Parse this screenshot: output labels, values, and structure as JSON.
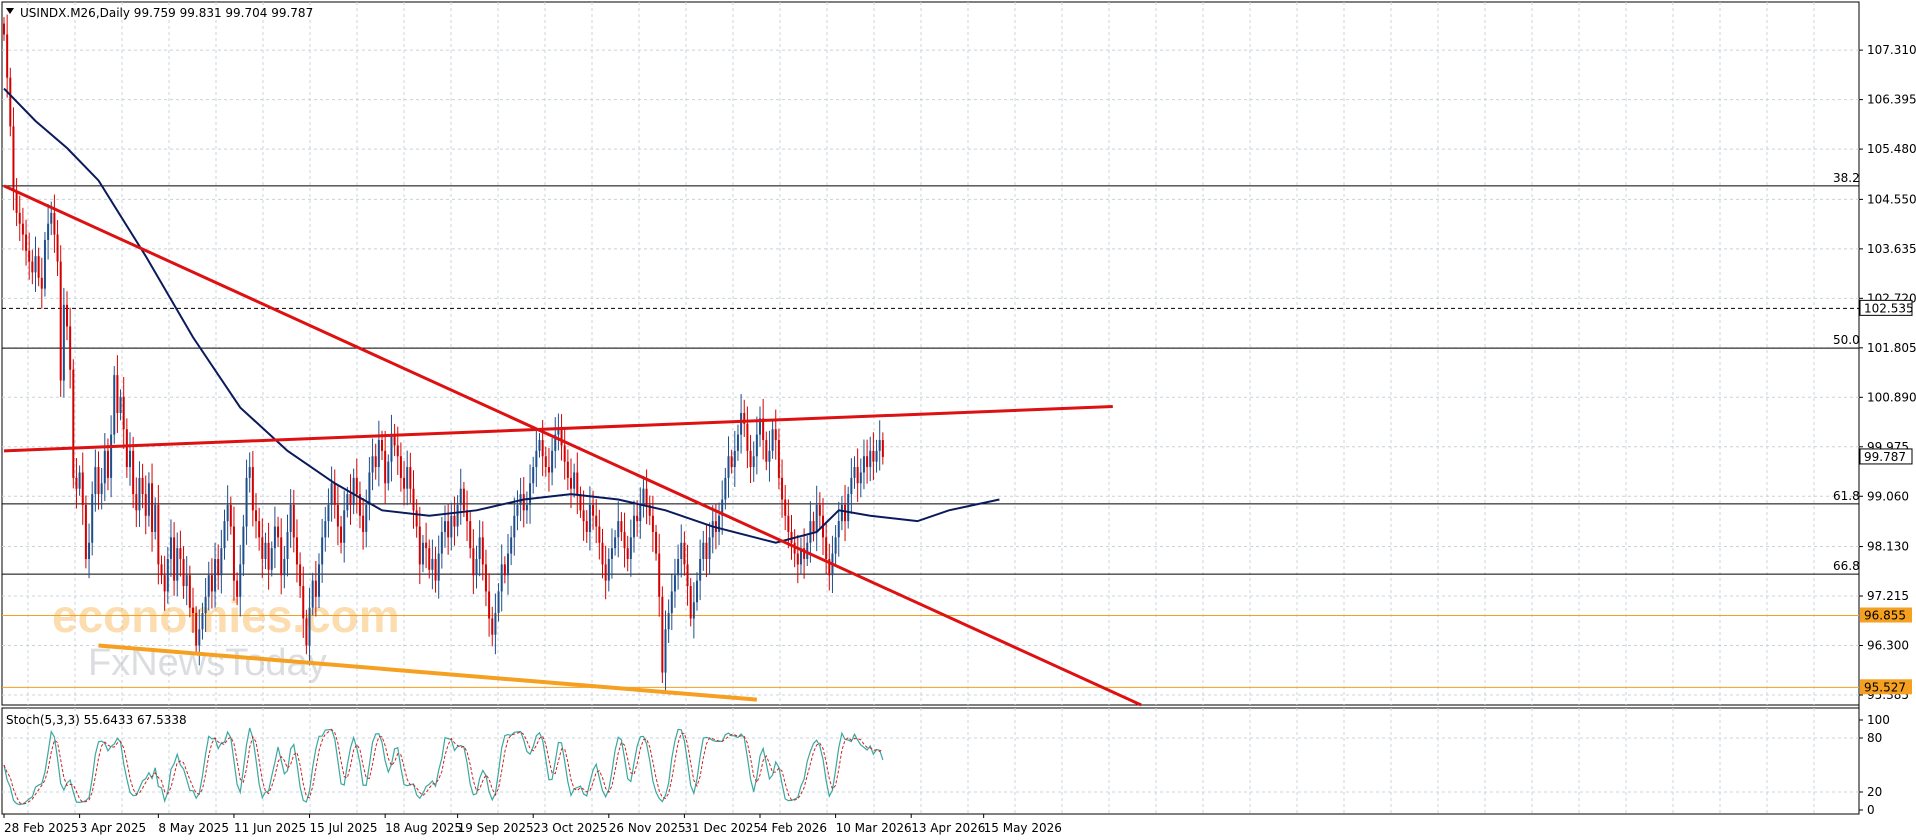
{
  "header": {
    "title": "USINDX.M26,Daily  99.759 99.831 99.704 99.787",
    "stoch_title": "Stoch(5,3,3) 55.6433 67.5338"
  },
  "watermark": {
    "line1": "economies.com",
    "line2": "FxNewsToday"
  },
  "colors": {
    "bull": "#1f4e8c",
    "bear": "#d40000",
    "ma": "#0a1a5c",
    "trend_red": "#dd1111",
    "trend_orange": "#f5a020",
    "stoch_main": "#3aa8a0",
    "stoch_signal": "#cc2222",
    "grid": "#c8d4dc"
  },
  "chart_data": {
    "type": "candlestick",
    "symbol": "USINDX.M26",
    "timeframe": "Daily",
    "ohlc_current": {
      "open": 99.759,
      "high": 99.831,
      "low": 99.704,
      "close": 99.787
    },
    "ylim": [
      95.2,
      108.2
    ],
    "y_ticks": [
      "107.310",
      "106.395",
      "105.480",
      "104.550",
      "103.635",
      "102.720",
      "101.805",
      "100.890",
      "99.975",
      "99.060",
      "98.130",
      "97.215",
      "96.300",
      "95.385"
    ],
    "x_ticks": [
      "28 Feb 2025",
      "3 Apr 2025",
      "8 May 2025",
      "11 Jun 2025",
      "15 Jul 2025",
      "18 Aug 2025",
      "19 Sep 2025",
      "23 Oct 2025",
      "26 Nov 2025",
      "31 Dec 2025",
      "4 Feb 2026",
      "10 Mar 2026",
      "13 Apr 2026",
      "15 May 2026"
    ],
    "x_tick_bar_index": [
      0,
      24,
      49,
      73,
      97,
      121,
      144,
      168,
      192,
      216,
      240,
      264,
      288,
      311
    ],
    "closes": [
      107.6,
      106.8,
      105.9,
      104.7,
      104.3,
      104.1,
      103.9,
      103.6,
      103.4,
      103.2,
      103.5,
      103.1,
      102.9,
      103.8,
      104.1,
      104.3,
      103.9,
      103.4,
      101.2,
      102.6,
      102.2,
      101.4,
      99.4,
      99.2,
      99.5,
      98.9,
      97.9,
      98.2,
      99.1,
      99.6,
      99.1,
      99.3,
      99.9,
      99.4,
      100.2,
      101.3,
      100.6,
      100.9,
      100.3,
      99.6,
      99.9,
      99.1,
      98.8,
      99.4,
      99.1,
      98.7,
      99.3,
      98.4,
      98.9,
      97.8,
      97.6,
      97.3,
      97.9,
      98.3,
      97.5,
      98.1,
      97.9,
      97.4,
      97.6,
      97.0,
      96.9,
      96.3,
      96.6,
      96.9,
      97.2,
      97.6,
      97.3,
      97.9,
      97.6,
      98.1,
      98.6,
      98.9,
      98.5,
      97.5,
      97.2,
      97.8,
      98.5,
      99.4,
      99.6,
      98.8,
      98.6,
      98.3,
      97.9,
      98.2,
      97.7,
      98.1,
      98.5,
      98.3,
      97.6,
      97.9,
      98.4,
      98.9,
      98.3,
      97.8,
      97.4,
      96.8,
      96.3,
      97.0,
      97.5,
      97.2,
      97.8,
      98.3,
      98.6,
      98.9,
      99.3,
      98.9,
      98.5,
      98.2,
      98.8,
      99.1,
      98.9,
      99.4,
      99.1,
      98.7,
      98.4,
      98.9,
      99.5,
      99.8,
      99.6,
      100.1,
      99.9,
      99.3,
      99.7,
      100.2,
      100.0,
      99.8,
      99.4,
      99.2,
      99.6,
      99.2,
      98.8,
      98.5,
      97.8,
      98.2,
      98.1,
      97.7,
      97.9,
      97.5,
      98.0,
      98.4,
      98.6,
      98.3,
      98.7,
      98.5,
      98.9,
      99.2,
      98.8,
      98.6,
      98.1,
      97.6,
      97.9,
      98.3,
      97.8,
      97.3,
      96.8,
      96.5,
      96.9,
      97.3,
      97.8,
      97.6,
      98.0,
      98.3,
      98.7,
      98.9,
      99.1,
      98.8,
      98.9,
      99.3,
      99.6,
      99.9,
      100.1,
      99.8,
      99.6,
      99.5,
      99.9,
      100.2,
      100.3,
      100.0,
      99.7,
      99.4,
      99.2,
      99.5,
      99.1,
      98.8,
      98.6,
      98.4,
      98.9,
      98.7,
      98.5,
      98.2,
      97.8,
      97.5,
      97.9,
      98.1,
      98.3,
      98.6,
      98.4,
      98.1,
      97.9,
      98.3,
      98.7,
      98.6,
      98.9,
      99.2,
      98.9,
      98.7,
      98.4,
      98.0,
      97.2,
      95.8,
      96.6,
      96.9,
      97.3,
      97.6,
      97.9,
      98.2,
      97.8,
      97.4,
      96.8,
      97.1,
      97.5,
      97.9,
      98.2,
      97.9,
      98.3,
      98.6,
      98.4,
      98.7,
      99.0,
      99.4,
      99.8,
      99.6,
      99.9,
      100.2,
      100.6,
      100.4,
      99.9,
      99.6,
      99.8,
      100.2,
      100.5,
      100.1,
      99.7,
      99.9,
      100.3,
      100.1,
      99.4,
      99.0,
      98.7,
      98.4,
      98.2,
      98.0,
      97.8,
      98.1,
      97.9,
      98.2,
      98.6,
      98.4,
      98.9,
      98.7,
      98.3,
      97.9,
      97.6,
      98.0,
      98.3,
      98.6,
      98.9,
      98.6,
      99.1,
      99.4,
      99.6,
      99.3,
      99.5,
      99.8,
      99.6,
      99.9,
      99.7,
      99.9,
      100.1,
      99.787
    ],
    "ma_period": 100,
    "ma": [
      {
        "i": 0,
        "v": 106.6
      },
      {
        "i": 10,
        "v": 106.0
      },
      {
        "i": 20,
        "v": 105.5
      },
      {
        "i": 30,
        "v": 104.9
      },
      {
        "i": 45,
        "v": 103.5
      },
      {
        "i": 60,
        "v": 102.0
      },
      {
        "i": 75,
        "v": 100.7
      },
      {
        "i": 90,
        "v": 99.9
      },
      {
        "i": 105,
        "v": 99.3
      },
      {
        "i": 120,
        "v": 98.8
      },
      {
        "i": 135,
        "v": 98.7
      },
      {
        "i": 150,
        "v": 98.8
      },
      {
        "i": 165,
        "v": 99.0
      },
      {
        "i": 180,
        "v": 99.1
      },
      {
        "i": 195,
        "v": 99.0
      },
      {
        "i": 210,
        "v": 98.8
      },
      {
        "i": 225,
        "v": 98.5
      },
      {
        "i": 245,
        "v": 98.2
      },
      {
        "i": 258,
        "v": 98.4
      },
      {
        "i": 265,
        "v": 98.8
      },
      {
        "i": 275,
        "v": 98.7
      },
      {
        "i": 290,
        "v": 98.6
      },
      {
        "i": 300,
        "v": 98.8
      },
      {
        "i": 316,
        "v": 99.0
      }
    ],
    "trendlines": [
      {
        "name": "",
        "color": "trend_red",
        "from": {
          "i": 0,
          "v": 104.8
        },
        "to": {
          "i": 361,
          "v": 95.2
        }
      },
      {
        "name": "",
        "color": "trend_red",
        "from": {
          "i": 0,
          "v": 99.9
        },
        "to": {
          "i": 352,
          "v": 100.72
        }
      },
      {
        "name": "",
        "color": "trend_orange",
        "from": {
          "i": 30,
          "v": 96.3
        },
        "to": {
          "i": 239,
          "v": 95.3
        }
      }
    ],
    "levels": [
      {
        "value": 104.8,
        "label": "38.2",
        "style": "solid",
        "color": "#000000"
      },
      {
        "value": 102.535,
        "label": "102.535",
        "style": "dashed",
        "color": "#000000",
        "boxed": true
      },
      {
        "value": 101.8,
        "label": "50.0",
        "style": "solid",
        "color": "#000000"
      },
      {
        "value": 99.787,
        "label": "99.787",
        "style": "none",
        "color": "#000000",
        "boxed": true
      },
      {
        "value": 98.92,
        "label": "61.8",
        "style": "solid",
        "color": "#000000"
      },
      {
        "value": 97.62,
        "label": "66.8",
        "style": "solid",
        "color": "#000000"
      },
      {
        "value": 96.855,
        "label": "96.855",
        "style": "solid",
        "color": "#f5a020",
        "boxed": true,
        "box_color": "#f5a020"
      },
      {
        "value": 95.527,
        "label": "95.527",
        "style": "solid",
        "color": "#f5a020",
        "boxed": true,
        "box_color": "#f5a020"
      }
    ],
    "stochastic": {
      "params": "5,3,3",
      "main": 55.6433,
      "signal": 67.5338,
      "ylim": [
        0,
        100
      ],
      "y_ticks": [
        "100",
        "80",
        "20",
        "0"
      ],
      "levels": [
        80,
        20
      ]
    }
  }
}
